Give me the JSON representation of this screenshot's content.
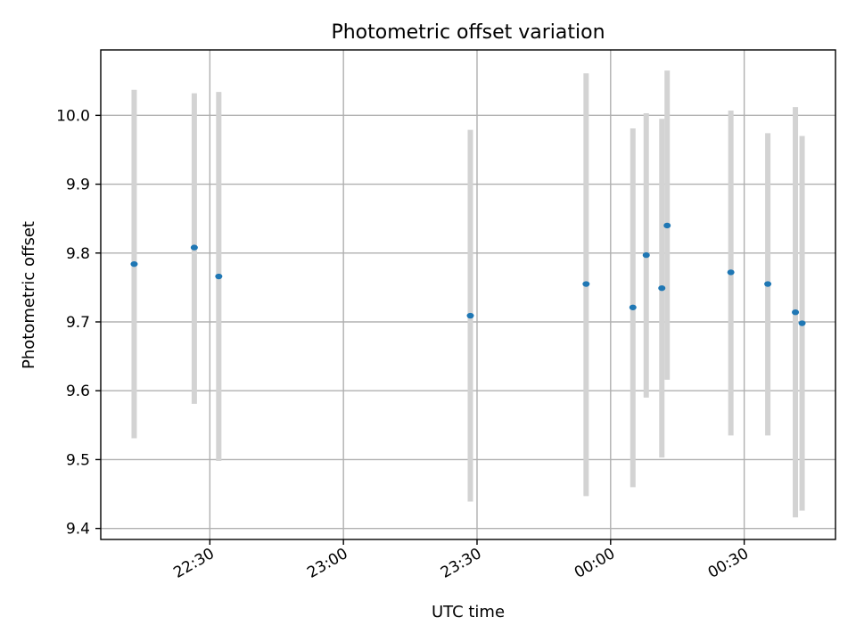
{
  "chart_data": {
    "type": "scatter",
    "title": "Photometric offset variation",
    "xlabel": "UTC time",
    "ylabel": "Photometric offset",
    "x_ticks": [
      "22:30",
      "23:00",
      "23:30",
      "00:00",
      "00:30"
    ],
    "y_ticks": [
      "9.4",
      "9.5",
      "9.6",
      "9.7",
      "9.8",
      "9.9",
      "10.0"
    ],
    "xlim": [
      "22:05:30",
      "00:50:30"
    ],
    "ylim": [
      9.384,
      10.095
    ],
    "grid": true,
    "colors": {
      "point": "#1f77b4",
      "errorbar": "#d3d3d3",
      "grid": "#b0b0b0"
    },
    "points": [
      {
        "time": "22:13",
        "y": 9.784,
        "y_low": 9.531,
        "y_high": 10.037
      },
      {
        "time": "22:26.5",
        "y": 9.808,
        "y_low": 9.581,
        "y_high": 10.032
      },
      {
        "time": "22:32",
        "y": 9.766,
        "y_low": 9.498,
        "y_high": 10.034
      },
      {
        "time": "23:28.5",
        "y": 9.709,
        "y_low": 9.439,
        "y_high": 9.979
      },
      {
        "time": "23:54.5",
        "y": 9.755,
        "y_low": 9.447,
        "y_high": 10.061
      },
      {
        "time": "00:05",
        "y": 9.721,
        "y_low": 9.46,
        "y_high": 9.981
      },
      {
        "time": "00:08",
        "y": 9.797,
        "y_low": 9.59,
        "y_high": 10.003
      },
      {
        "time": "00:11.5",
        "y": 9.749,
        "y_low": 9.503,
        "y_high": 9.995
      },
      {
        "time": "00:12.7",
        "y": 9.84,
        "y_low": 9.616,
        "y_high": 10.065
      },
      {
        "time": "00:27",
        "y": 9.772,
        "y_low": 9.535,
        "y_high": 10.007
      },
      {
        "time": "00:35.3",
        "y": 9.755,
        "y_low": 9.535,
        "y_high": 9.974
      },
      {
        "time": "00:41.5",
        "y": 9.714,
        "y_low": 9.416,
        "y_high": 10.012
      },
      {
        "time": "00:43",
        "y": 9.698,
        "y_low": 9.426,
        "y_high": 9.97
      }
    ]
  }
}
